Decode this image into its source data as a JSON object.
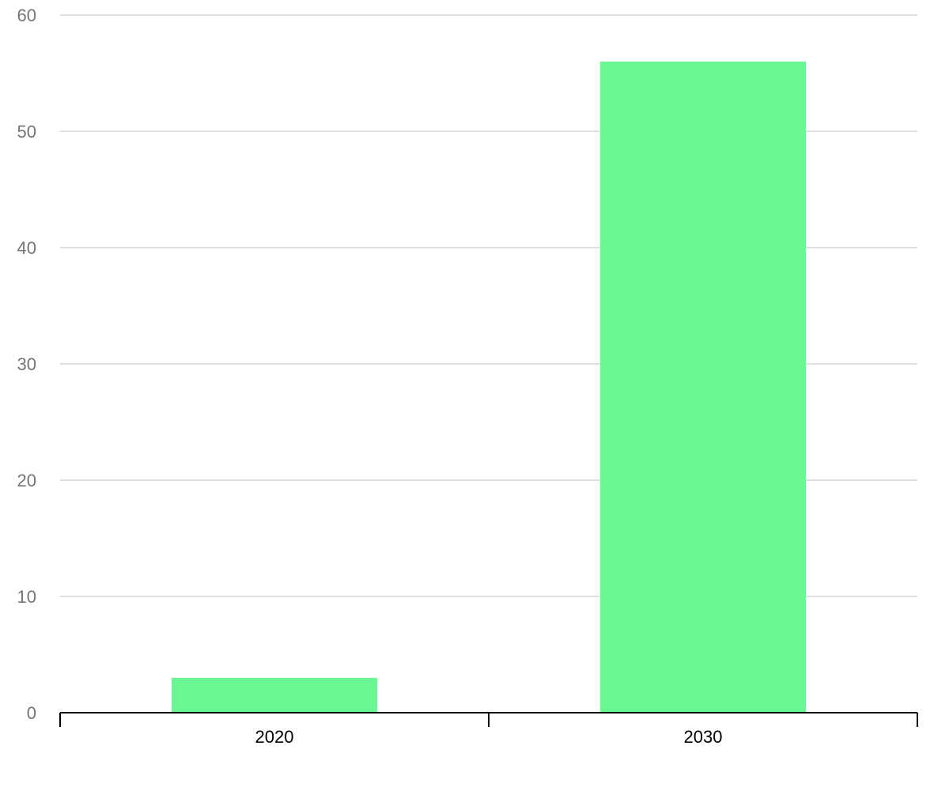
{
  "chart_data": {
    "type": "bar",
    "categories": [
      "2020",
      "2030"
    ],
    "values": [
      3,
      56
    ],
    "ylim": [
      0,
      60
    ],
    "yticks": [
      0,
      10,
      20,
      30,
      40,
      50,
      60
    ],
    "grid": true,
    "bar_color": "#6af794",
    "title": "",
    "xlabel": "",
    "ylabel": ""
  }
}
